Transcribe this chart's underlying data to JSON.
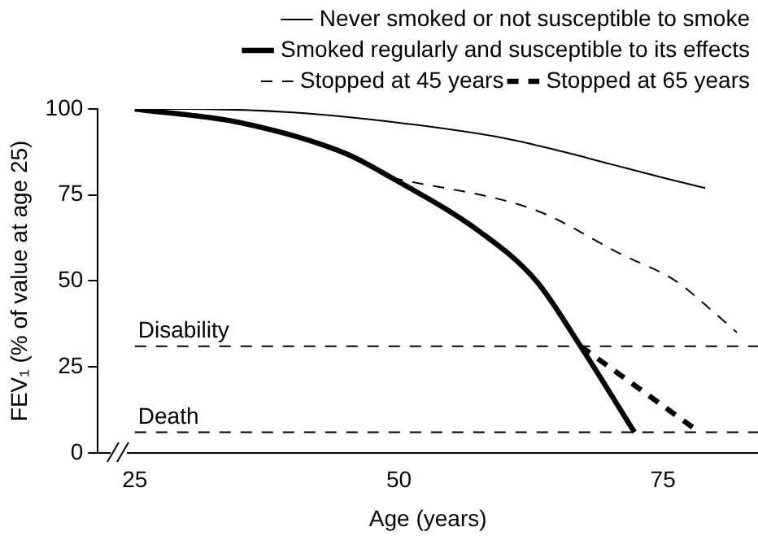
{
  "chart_data": {
    "type": "line",
    "xlabel": "Age (years)",
    "ylabel": "FEV₁ (% of value at age 25)",
    "xlim": [
      21.5,
      84
    ],
    "xticks": [
      25,
      50,
      75
    ],
    "ylim": [
      0,
      100
    ],
    "yticks": [
      0,
      25,
      50,
      75,
      100
    ],
    "grid": false,
    "legend": "top",
    "marker": "none",
    "series": [
      {
        "name": "Never smoked or not susceptible to smoke",
        "color": "#000000",
        "line_style": "solid",
        "x": [
          25,
          30,
          40,
          50,
          60,
          65,
          70,
          75,
          79
        ],
        "values": [
          100,
          100,
          99,
          96,
          91.5,
          88,
          84,
          80,
          77
        ]
      },
      {
        "name": "Smoked regularly and susceptible to its effects",
        "color": "#000000",
        "line_style": "solid",
        "x": [
          25,
          35,
          45,
          49.3,
          57.8,
          63,
          67.2,
          72.3
        ],
        "values": [
          100,
          96,
          87,
          80,
          64,
          50,
          31,
          6
        ]
      },
      {
        "name": "Stopped at 45 years",
        "color": "#000000",
        "line_style": "dashed",
        "x": [
          49.3,
          63,
          70.9,
          76.2,
          79.4,
          82
        ],
        "values": [
          80,
          70.5,
          58,
          50,
          42,
          35
        ]
      },
      {
        "name": "Stopped at 65 years",
        "color": "#000000",
        "line_style": "dashed",
        "x": [
          67.2,
          78
        ],
        "values": [
          31,
          7
        ]
      }
    ],
    "ref_lines": [
      {
        "axis": "y",
        "value": 31,
        "label": "Disability",
        "color": "#000000",
        "line_style": "dashed"
      },
      {
        "axis": "y",
        "value": 6,
        "label": "Death",
        "color": "#000000",
        "line_style": "dashed"
      }
    ]
  }
}
